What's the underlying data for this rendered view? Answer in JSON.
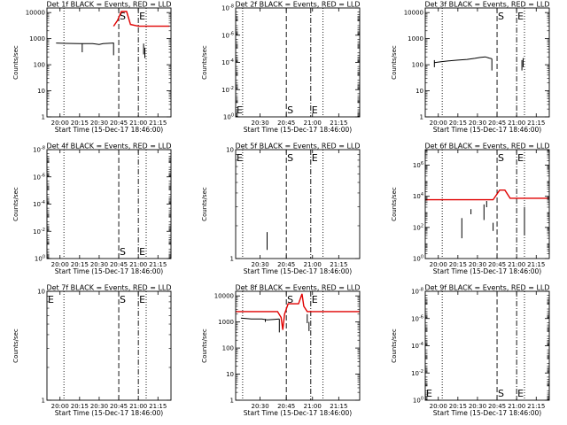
{
  "figure": {
    "xlabel": "Start Time (15-Dec-17 18:46:00)",
    "ylabel": "Counts/sec",
    "colors": {
      "events": "#000000",
      "lld": "#e00000",
      "axis": "#000000",
      "background": "#ffffff"
    }
  },
  "chart_data": [
    {
      "type": "line",
      "title": "Det 1f BLACK = Events, RED = LLD",
      "xlabel": "Start Time (15-Dec-17 18:46:00)",
      "ylabel": "Counts/sec",
      "yscale": "log",
      "xlim": [
        "19:50",
        "21:25"
      ],
      "ylim": [
        1,
        15000
      ],
      "xticks": [
        "20:00",
        "20:15",
        "20:30",
        "20:45",
        "21:00",
        "21:15"
      ],
      "yticks": [
        {
          "v": 1,
          "label": "1"
        },
        {
          "v": 10,
          "label": "10"
        },
        {
          "v": 100,
          "label": "100"
        },
        {
          "v": 1000,
          "label": "1000"
        },
        {
          "v": 10000,
          "label": "10000"
        }
      ],
      "markers": [
        {
          "time": "20:45",
          "label": "S",
          "style": "dashed"
        },
        {
          "time": "21:00",
          "label": "E",
          "style": "dashdot"
        }
      ],
      "saa_times": [
        "20:03",
        "21:06"
      ],
      "series": [
        {
          "name": "Events",
          "color": "#000000",
          "segments": [
            [
              [
                "19:57",
                680
              ],
              [
                "20:05",
                660
              ],
              [
                "20:15",
                640
              ],
              [
                "20:25",
                640
              ],
              [
                "20:30",
                600
              ],
              [
                "20:33",
                640
              ],
              [
                "20:41",
                680
              ]
            ],
            [
              [
                "20:17",
                650
              ],
              [
                "20:17",
                300
              ]
            ],
            [
              [
                "20:41",
                700
              ],
              [
                "20:41",
                230
              ]
            ],
            [
              [
                "21:04",
                250
              ],
              [
                "21:04",
                650
              ]
            ],
            [
              [
                "21:05",
                180
              ],
              [
                "21:05",
                450
              ]
            ]
          ]
        },
        {
          "name": "LLD",
          "color": "#e00000",
          "segments": [
            [
              [
                "20:41",
                3000
              ],
              [
                "20:44",
                5000
              ],
              [
                "20:47",
                11000
              ],
              [
                "20:51",
                11000
              ],
              [
                "20:54",
                3500
              ],
              [
                "21:00",
                3000
              ],
              [
                "21:24",
                3000
              ]
            ]
          ]
        }
      ]
    },
    {
      "type": "line",
      "title": "Det 2f BLACK = Events, RED = LLD",
      "xlabel": "Start Time (15-Dec-17 18:46:00)",
      "ylabel": "Counts/sec",
      "yscale": "log",
      "xlim": [
        "20:16",
        "21:27"
      ],
      "ylim": [
        1,
        1e-08
      ],
      "xticks": [
        "20:30",
        "20:45",
        "21:00",
        "21:15"
      ],
      "yticks": [
        {
          "v": 1,
          "label": "10^0"
        },
        {
          "v": 0.01,
          "label": "10^-2"
        },
        {
          "v": 0.0001,
          "label": "10^-4"
        },
        {
          "v": 1e-06,
          "label": "10^-6"
        },
        {
          "v": 1e-08,
          "label": "10^-8"
        }
      ],
      "markers": [
        {
          "time": "20:45",
          "label": "S",
          "style": "dashed"
        },
        {
          "time": "20:59",
          "label": "E",
          "style": "dashdot"
        }
      ],
      "saa_times": [
        "20:20",
        "21:06"
      ],
      "corner_label": "E",
      "series": []
    },
    {
      "type": "line",
      "title": "Det 3f BLACK = Events, RED = LLD",
      "xlabel": "Start Time (15-Dec-17 18:46:00)",
      "ylabel": "Counts/sec",
      "yscale": "log",
      "xlim": [
        "19:50",
        "21:25"
      ],
      "ylim": [
        1,
        15000
      ],
      "xticks": [
        "20:00",
        "20:15",
        "20:30",
        "20:45",
        "21:00",
        "21:15"
      ],
      "yticks": [
        {
          "v": 1,
          "label": "1"
        },
        {
          "v": 10,
          "label": "10"
        },
        {
          "v": 100,
          "label": "100"
        },
        {
          "v": 1000,
          "label": "1000"
        },
        {
          "v": 10000,
          "label": "10000"
        }
      ],
      "markers": [
        {
          "time": "20:45",
          "label": "S",
          "style": "dashed"
        },
        {
          "time": "21:00",
          "label": "E",
          "style": "dashdot"
        }
      ],
      "saa_times": [
        "20:03",
        "21:06"
      ],
      "series": [
        {
          "name": "Events",
          "color": "#000000",
          "segments": [
            [
              [
                "19:57",
                120
              ],
              [
                "20:02",
                130
              ],
              [
                "20:08",
                140
              ],
              [
                "20:15",
                150
              ],
              [
                "20:22",
                160
              ],
              [
                "20:28",
                175
              ],
              [
                "20:32",
                190
              ],
              [
                "20:36",
                200
              ],
              [
                "20:39",
                180
              ],
              [
                "20:41",
                170
              ]
            ],
            [
              [
                "19:57",
                150
              ],
              [
                "19:57",
                80
              ]
            ],
            [
              [
                "20:41",
                170
              ],
              [
                "20:41",
                60
              ]
            ],
            [
              [
                "21:04",
                60
              ],
              [
                "21:04",
                150
              ]
            ],
            [
              [
                "21:05",
                80
              ],
              [
                "21:05",
                180
              ]
            ]
          ]
        }
      ]
    },
    {
      "type": "line",
      "title": "Det 4f BLACK = Events, RED = LLD",
      "xlabel": "Start Time (15-Dec-17 18:46:00)",
      "ylabel": "Counts/sec",
      "yscale": "log",
      "xlim": [
        "19:50",
        "21:25"
      ],
      "ylim": [
        1,
        1e-08
      ],
      "xticks": [
        "20:00",
        "20:15",
        "20:30",
        "20:45",
        "21:00",
        "21:15"
      ],
      "yticks": [
        {
          "v": 1,
          "label": "10^0"
        },
        {
          "v": 0.01,
          "label": "10^-2"
        },
        {
          "v": 0.0001,
          "label": "10^-4"
        },
        {
          "v": 1e-06,
          "label": "10^-6"
        },
        {
          "v": 1e-08,
          "label": "10^-8"
        }
      ],
      "markers": [
        {
          "time": "20:45",
          "label": "S",
          "style": "dashed"
        },
        {
          "time": "21:00",
          "label": "E",
          "style": "dashdot"
        }
      ],
      "saa_times": [
        "20:03",
        "21:06"
      ],
      "series": []
    },
    {
      "type": "line",
      "title": "Det 5f BLACK = Events, RED = LLD",
      "xlabel": "Start Time (15-Dec-17 18:46:00)",
      "ylabel": "Counts/sec",
      "yscale": "log",
      "xlim": [
        "20:16",
        "21:27"
      ],
      "ylim": [
        1,
        10
      ],
      "xticks": [
        "20:30",
        "20:45",
        "21:00",
        "21:15"
      ],
      "yticks": [
        {
          "v": 1,
          "label": "1"
        },
        {
          "v": 10,
          "label": "10"
        }
      ],
      "markers": [
        {
          "time": "20:45",
          "label": "S",
          "style": "dashed"
        },
        {
          "time": "20:59",
          "label": "E",
          "style": "dashdot"
        }
      ],
      "saa_times": [
        "20:20",
        "21:06"
      ],
      "corner_label": "E",
      "series": [
        {
          "name": "Events",
          "color": "#000000",
          "segments": [
            [
              [
                "20:34",
                1.2
              ],
              [
                "20:34",
                1.75
              ]
            ]
          ]
        }
      ]
    },
    {
      "type": "line",
      "title": "Det 6f BLACK = Events, RED = LLD",
      "xlabel": "Start Time (15-Dec-17 18:46:00)",
      "ylabel": "Counts/sec",
      "yscale": "log",
      "xlim": [
        "19:50",
        "21:25"
      ],
      "ylim": [
        1,
        10000000
      ],
      "xticks": [
        "20:00",
        "20:15",
        "20:30",
        "20:45",
        "21:00",
        "21:15"
      ],
      "yticks": [
        {
          "v": 1,
          "label": "10^0"
        },
        {
          "v": 100,
          "label": "10^2"
        },
        {
          "v": 10000,
          "label": "10^4"
        },
        {
          "v": 1000000,
          "label": "10^6"
        }
      ],
      "markers": [
        {
          "time": "20:45",
          "label": "S",
          "style": "dashed"
        },
        {
          "time": "21:00",
          "label": "E",
          "style": "dashdot"
        }
      ],
      "saa_times": [
        "20:03",
        "21:06"
      ],
      "series": [
        {
          "name": "Events",
          "color": "#000000",
          "segments": [
            [
              [
                "20:18",
                20
              ],
              [
                "20:18",
                400
              ]
            ],
            [
              [
                "20:25",
                700
              ],
              [
                "20:25",
                1500
              ]
            ],
            [
              [
                "20:35",
                300
              ],
              [
                "20:35",
                3000
              ]
            ],
            [
              [
                "20:37",
                2000
              ],
              [
                "20:37",
                5000
              ]
            ],
            [
              [
                "20:42",
                60
              ],
              [
                "20:42",
                200
              ]
            ],
            [
              [
                "21:06",
                30
              ],
              [
                "21:06",
                2000
              ]
            ]
          ]
        },
        {
          "name": "LLD",
          "color": "#e00000",
          "segments": [
            [
              [
                "19:50",
                6000
              ],
              [
                "20:42",
                6000
              ],
              [
                "20:47",
                25000
              ],
              [
                "20:51",
                25000
              ],
              [
                "20:55",
                7500
              ],
              [
                "21:25",
                7500
              ]
            ]
          ]
        }
      ]
    },
    {
      "type": "line",
      "title": "Det 7f BLACK = Events, RED = LLD",
      "xlabel": "Start Time (15-Dec-17 18:46:00)",
      "ylabel": "Counts/sec",
      "yscale": "log",
      "xlim": [
        "19:50",
        "21:25"
      ],
      "ylim": [
        1,
        10
      ],
      "xticks": [
        "20:00",
        "20:15",
        "20:30",
        "20:45",
        "21:00",
        "21:15"
      ],
      "yticks": [
        {
          "v": 1,
          "label": "1"
        },
        {
          "v": 10,
          "label": "10"
        }
      ],
      "markers": [
        {
          "time": "20:45",
          "label": "S",
          "style": "dashed"
        },
        {
          "time": "21:00",
          "label": "E",
          "style": "dashdot"
        }
      ],
      "saa_times": [
        "20:03",
        "21:06"
      ],
      "corner_label": "E",
      "series": []
    },
    {
      "type": "line",
      "title": "Det 8f BLACK = Events, RED = LLD",
      "xlabel": "Start Time (15-Dec-17 18:46:00)",
      "ylabel": "Counts/sec",
      "yscale": "log",
      "xlim": [
        "20:16",
        "21:27"
      ],
      "ylim": [
        1,
        15000
      ],
      "xticks": [
        "20:30",
        "20:45",
        "21:00",
        "21:15"
      ],
      "yticks": [
        {
          "v": 1,
          "label": "1"
        },
        {
          "v": 10,
          "label": "10"
        },
        {
          "v": 100,
          "label": "100"
        },
        {
          "v": 1000,
          "label": "1000"
        },
        {
          "v": 10000,
          "label": "10000"
        }
      ],
      "markers": [
        {
          "time": "20:45",
          "label": "S",
          "style": "dashed"
        },
        {
          "time": "20:59",
          "label": "E",
          "style": "dashdot"
        }
      ],
      "saa_times": [
        "20:20",
        "21:06"
      ],
      "series": [
        {
          "name": "Events",
          "color": "#000000",
          "segments": [
            [
              [
                "20:19",
                1400
              ],
              [
                "20:25",
                1300
              ],
              [
                "20:31",
                1300
              ],
              [
                "20:34",
                1200
              ],
              [
                "20:38",
                1250
              ],
              [
                "20:41",
                1300
              ]
            ],
            [
              [
                "20:33",
                1300
              ],
              [
                "20:33",
                1000
              ]
            ],
            [
              [
                "20:41",
                1300
              ],
              [
                "20:41",
                400
              ]
            ],
            [
              [
                "20:57",
                2000
              ],
              [
                "20:57",
                900
              ]
            ],
            [
              [
                "20:58",
                1000
              ],
              [
                "20:58",
                450
              ]
            ]
          ]
        },
        {
          "name": "LLD",
          "color": "#e00000",
          "segments": [
            [
              [
                "20:16",
                2500
              ],
              [
                "20:40",
                2500
              ],
              [
                "20:42",
                1500
              ],
              [
                "20:43",
                500
              ],
              [
                "20:44",
                2000
              ],
              [
                "20:46",
                5000
              ],
              [
                "20:52",
                5000
              ],
              [
                "20:54",
                12000
              ],
              [
                "20:55",
                4000
              ],
              [
                "20:57",
                2500
              ],
              [
                "21:27",
                2500
              ]
            ]
          ]
        }
      ]
    },
    {
      "type": "line",
      "title": "Det 9f BLACK = Events, RED = LLD",
      "xlabel": "Start Time (15-Dec-17 18:46:00)",
      "ylabel": "Counts/sec",
      "yscale": "log",
      "xlim": [
        "19:50",
        "21:25"
      ],
      "ylim": [
        1,
        1e-08
      ],
      "xticks": [
        "20:00",
        "20:15",
        "20:30",
        "20:45",
        "21:00",
        "21:15"
      ],
      "yticks": [
        {
          "v": 1,
          "label": "10^0"
        },
        {
          "v": 0.01,
          "label": "10^-2"
        },
        {
          "v": 0.0001,
          "label": "10^-4"
        },
        {
          "v": 1e-06,
          "label": "10^-6"
        },
        {
          "v": 1e-08,
          "label": "10^-8"
        }
      ],
      "markers": [
        {
          "time": "20:45",
          "label": "S",
          "style": "dashed"
        },
        {
          "time": "21:00",
          "label": "E",
          "style": "dashdot"
        }
      ],
      "saa_times": [
        "20:03",
        "21:06"
      ],
      "corner_label": "E",
      "series": []
    }
  ]
}
